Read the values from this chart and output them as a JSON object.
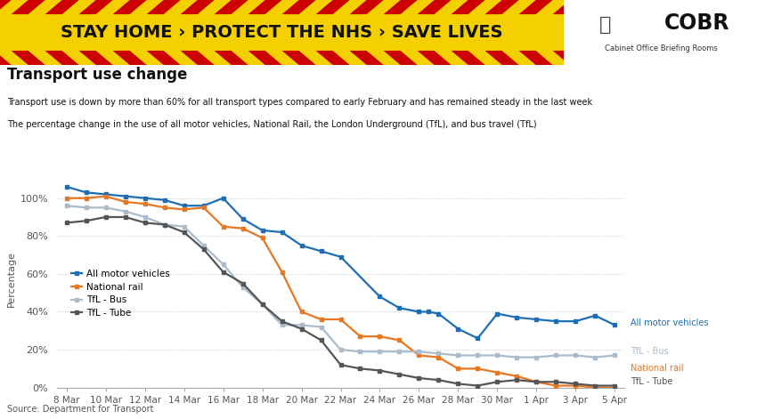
{
  "title": "Transport use change",
  "subtitle1": "Transport use is down by more than 60% for all transport types compared to early February and has remained steady in the last week",
  "subtitle2": "The percentage change in the use of all motor vehicles, National Rail, the London Underground (TfL), and bus travel (TfL)",
  "source": "Source: Department for Transport",
  "ylabel": "Percentage",
  "banner_text": "STAY HOME › PROTECT THE NHS › SAVE LIVES",
  "banner_bg": "#f5d000",
  "banner_text_color": "#111111",
  "cobr_text": "COBR",
  "cobr_sub": "Cabinet Office Briefing Rooms",
  "x_labels": [
    "8 Mar",
    "10 Mar",
    "12 Mar",
    "14 Mar",
    "16 Mar",
    "18 Mar",
    "20 Mar",
    "22 Mar",
    "24 Mar",
    "26 Mar",
    "28 Mar",
    "30 Mar",
    "1 Apr",
    "3 Apr",
    "5 Apr"
  ],
  "x_values": [
    0,
    2,
    4,
    6,
    8,
    10,
    12,
    14,
    16,
    18,
    20,
    22,
    24,
    26,
    28
  ],
  "series": {
    "all_motor": {
      "label": "All motor vehicles",
      "color": "#1e6eb5",
      "values_x": [
        0,
        1,
        2,
        3,
        4,
        5,
        6,
        7,
        8,
        9,
        10,
        11,
        12,
        13,
        14,
        16,
        17,
        18,
        18.5,
        19,
        20,
        21,
        22,
        23,
        24,
        25,
        26,
        27,
        28
      ],
      "values_y": [
        106,
        103,
        102,
        101,
        100,
        99,
        96,
        96,
        100,
        89,
        83,
        82,
        75,
        72,
        69,
        48,
        42,
        40,
        40,
        39,
        31,
        26,
        39,
        37,
        36,
        35,
        35,
        38,
        33
      ]
    },
    "national_rail": {
      "label": "National rail",
      "color": "#e87722",
      "values_x": [
        0,
        1,
        2,
        3,
        4,
        5,
        6,
        7,
        8,
        9,
        10,
        11,
        12,
        13,
        14,
        15,
        16,
        17,
        18,
        19,
        20,
        21,
        22,
        23,
        24,
        25,
        26,
        27,
        28
      ],
      "values_y": [
        100,
        100,
        101,
        98,
        97,
        95,
        94,
        95,
        85,
        84,
        79,
        61,
        40,
        36,
        36,
        27,
        27,
        25,
        17,
        16,
        10,
        10,
        8,
        6,
        3,
        1,
        1,
        0,
        0
      ]
    },
    "tfl_bus": {
      "label": "TfL - Bus",
      "color": "#aabccc",
      "values_x": [
        0,
        1,
        2,
        3,
        4,
        5,
        6,
        7,
        8,
        9,
        10,
        11,
        12,
        13,
        14,
        15,
        16,
        17,
        18,
        19,
        20,
        21,
        22,
        23,
        24,
        25,
        26,
        27,
        28
      ],
      "values_y": [
        96,
        95,
        95,
        93,
        90,
        86,
        85,
        75,
        65,
        53,
        44,
        33,
        33,
        32,
        20,
        19,
        19,
        19,
        19,
        18,
        17,
        17,
        17,
        16,
        16,
        17,
        17,
        16,
        17
      ]
    },
    "tfl_tube": {
      "label": "TfL - Tube",
      "color": "#555555",
      "values_x": [
        0,
        1,
        2,
        3,
        4,
        5,
        6,
        7,
        8,
        9,
        10,
        11,
        12,
        13,
        14,
        15,
        16,
        17,
        18,
        19,
        20,
        21,
        22,
        23,
        24,
        25,
        26,
        27,
        28
      ],
      "values_y": [
        87,
        88,
        90,
        90,
        87,
        86,
        82,
        73,
        61,
        55,
        44,
        35,
        31,
        25,
        12,
        10,
        9,
        7,
        5,
        4,
        2,
        1,
        3,
        4,
        3,
        3,
        2,
        1,
        1
      ]
    }
  },
  "right_labels": [
    {
      "y": 34,
      "text": "All motor vehicles",
      "color": "#1e6eb5"
    },
    {
      "y": 19,
      "text": "TfL - Bus",
      "color": "#aabccc"
    },
    {
      "y": 10,
      "text": "National rail",
      "color": "#e87722"
    },
    {
      "y": 3,
      "text": "TfL - Tube",
      "color": "#555555"
    }
  ],
  "legend_items": [
    {
      "label": "All motor vehicles",
      "color": "#1e6eb5"
    },
    {
      "label": "National rail",
      "color": "#e87722"
    },
    {
      "label": "TfL - Bus",
      "color": "#aabccc"
    },
    {
      "label": "TfL - Tube",
      "color": "#555555"
    }
  ],
  "background_color": "#ffffff",
  "grid_color": "#cccccc",
  "ylim": [
    0,
    115
  ],
  "yticks": [
    0,
    20,
    40,
    60,
    80,
    100
  ],
  "ytick_labels": [
    "0%",
    "20%",
    "40%",
    "60%",
    "80%",
    "100%"
  ]
}
